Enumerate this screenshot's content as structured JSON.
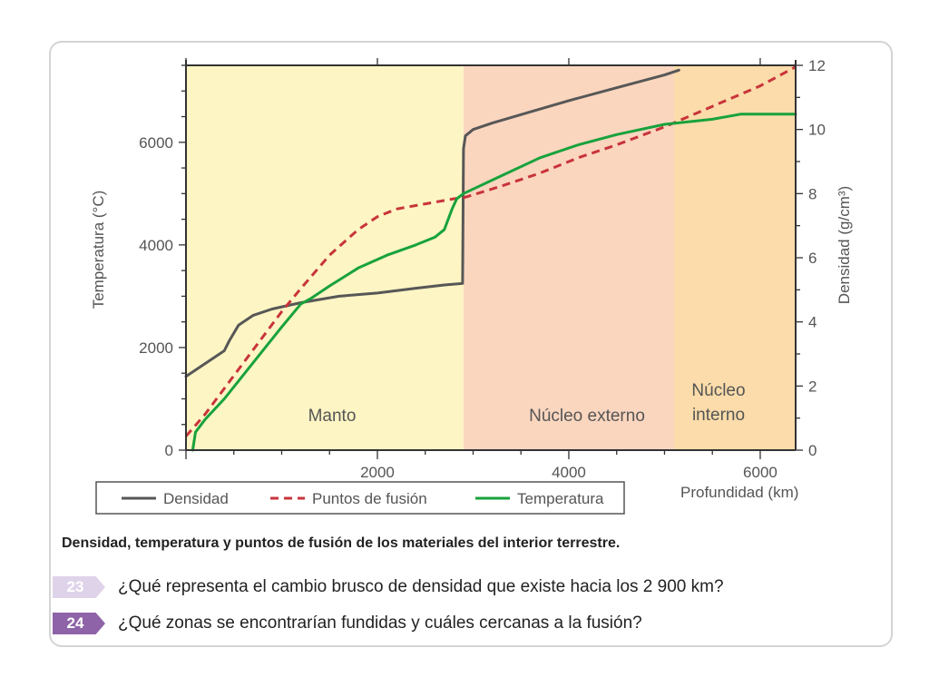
{
  "chart_data": {
    "type": "line",
    "xlabel": "Profundidad (km)",
    "ylabel_left": "Temperatura (°C)",
    "ylabel_right": "Densidad (g/cm³)",
    "xlim": [
      0,
      6370
    ],
    "ylim_left": [
      0,
      7500
    ],
    "ylim_right": [
      0,
      12
    ],
    "x_ticks": [
      "2000",
      "4000",
      "6000"
    ],
    "x_tick_values": [
      2000,
      4000,
      6000
    ],
    "y_left_ticks": [
      "0",
      "2000",
      "4000",
      "6000"
    ],
    "y_left_tick_values": [
      0,
      2000,
      4000,
      6000
    ],
    "y_right_ticks": [
      "0",
      "2",
      "4",
      "6",
      "8",
      "10",
      "12"
    ],
    "y_right_tick_values": [
      0,
      2,
      4,
      6,
      8,
      10,
      12
    ],
    "regions": [
      {
        "label": "Manto",
        "x_start": 0,
        "x_end": 2900,
        "color": "#fdf5c4"
      },
      {
        "label": "Núcleo externo",
        "x_start": 2900,
        "x_end": 5100,
        "color": "#fbd6bf"
      },
      {
        "label": "Núcleo interno",
        "x_start": 5100,
        "x_end": 6370,
        "color": "#fbdcaa"
      }
    ],
    "series": [
      {
        "name": "Densidad",
        "axis": "right",
        "color": "#575757",
        "dash": "solid",
        "x": [
          0,
          200,
          400,
          450,
          550,
          700,
          900,
          1200,
          1600,
          2000,
          2400,
          2700,
          2890,
          2900,
          2920,
          3000,
          3200,
          3600,
          4000,
          4500,
          5000,
          5150
        ],
        "y": [
          2.3,
          2.7,
          3.1,
          3.4,
          3.9,
          4.2,
          4.4,
          4.6,
          4.8,
          4.9,
          5.05,
          5.15,
          5.2,
          9.4,
          9.8,
          10.0,
          10.2,
          10.55,
          10.9,
          11.3,
          11.7,
          11.85
        ]
      },
      {
        "name": "Puntos de fusión",
        "axis": "left",
        "color": "#c8343a",
        "dash": "dashed",
        "x": [
          0,
          200,
          500,
          800,
          1000,
          1200,
          1500,
          1800,
          2000,
          2200,
          2500,
          2800,
          2900,
          3300,
          3700,
          4100,
          4500,
          5000,
          5500,
          6000,
          6370
        ],
        "y": [
          270,
          700,
          1450,
          2200,
          2700,
          3150,
          3800,
          4300,
          4550,
          4700,
          4800,
          4900,
          4920,
          5150,
          5400,
          5700,
          5950,
          6300,
          6700,
          7100,
          7470
        ]
      },
      {
        "name": "Temperatura",
        "axis": "left",
        "color": "#18a23c",
        "dash": "solid",
        "x": [
          70,
          100,
          200,
          400,
          700,
          1000,
          1200,
          1300,
          1500,
          1800,
          2100,
          2400,
          2600,
          2700,
          2780,
          2830,
          2900,
          3300,
          3700,
          4100,
          4500,
          5000,
          5500,
          5800,
          6100,
          6370
        ],
        "y": [
          0,
          350,
          600,
          1000,
          1700,
          2400,
          2850,
          2950,
          3200,
          3550,
          3800,
          4000,
          4150,
          4300,
          4700,
          4900,
          5000,
          5350,
          5700,
          5950,
          6150,
          6350,
          6450,
          6550,
          6550,
          6550
        ]
      }
    ]
  },
  "caption": "Densidad, temperatura y puntos de fusión de los materiales del interior terrestre.",
  "questions": [
    {
      "number": "23",
      "text": "¿Qué representa el cambio brusco de densidad que existe hacia los 2 900 km?"
    },
    {
      "number": "24",
      "text": "¿Qué zonas se encontrarían fundidas y cuáles cercanas a la fusión?"
    }
  ]
}
